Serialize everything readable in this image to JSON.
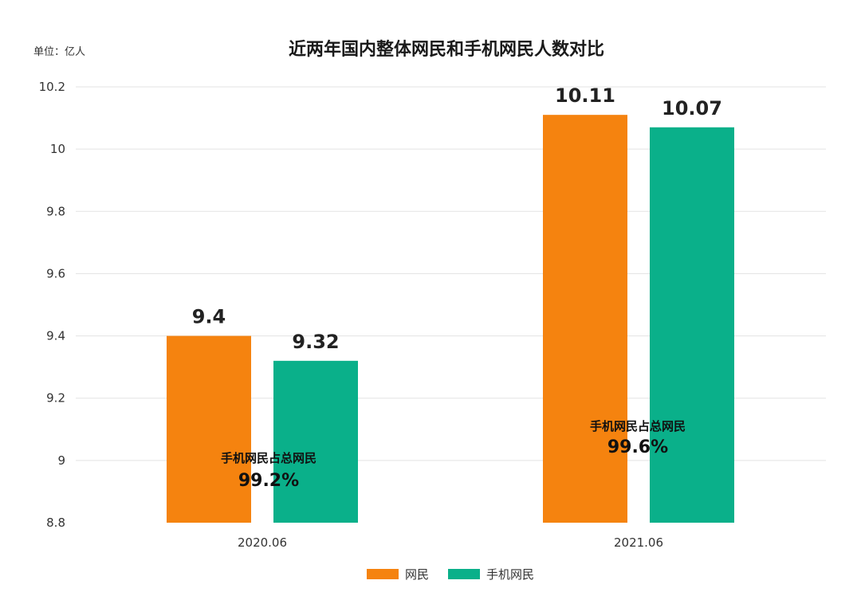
{
  "unit_label": "单位：亿人",
  "chart_data": {
    "type": "bar",
    "title": "近两年国内整体网民和手机网民人数对比",
    "categories": [
      "2020.06",
      "2021.06"
    ],
    "series": [
      {
        "name": "网民",
        "color": "#f5830f",
        "values": [
          9.4,
          10.11
        ],
        "labels": [
          "9.4",
          "10.11"
        ]
      },
      {
        "name": "手机网民",
        "color": "#0ab08a",
        "values": [
          9.32,
          10.07
        ],
        "labels": [
          "9.32",
          "10.07"
        ]
      }
    ],
    "ylim": [
      8.8,
      10.2
    ],
    "yticks": [
      "8.8",
      "9",
      "9.2",
      "9.4",
      "9.6",
      "9.8",
      "10",
      "10.2"
    ],
    "xlabel": "",
    "ylabel": "",
    "grid": true,
    "legend_position": "bottom-center",
    "annotations": [
      {
        "category": "2020.06",
        "line1": "手机网民占总网民",
        "line2": "99.2%"
      },
      {
        "category": "2021.06",
        "line1": "手机网民占总网民",
        "line2": "99.6%"
      }
    ]
  }
}
